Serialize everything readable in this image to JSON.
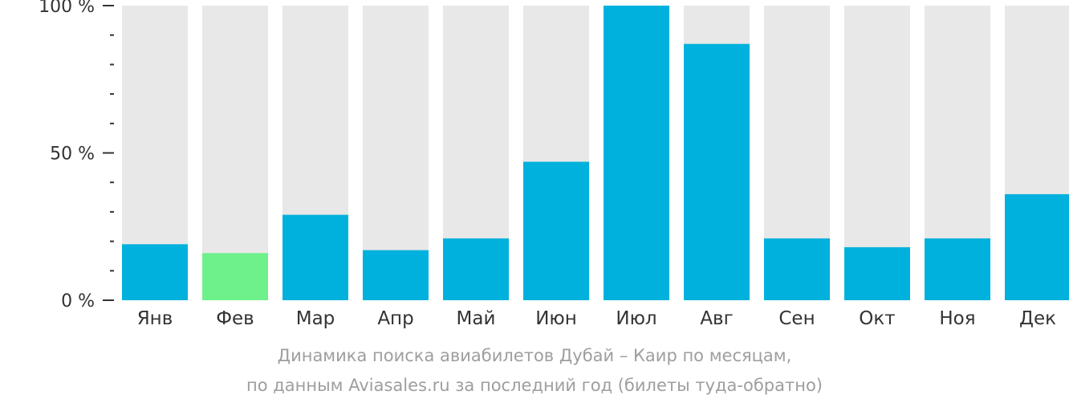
{
  "chart_data": {
    "type": "bar",
    "categories": [
      "Янв",
      "Фев",
      "Мар",
      "Апр",
      "Май",
      "Июн",
      "Июл",
      "Авг",
      "Сен",
      "Окт",
      "Ноя",
      "Дек"
    ],
    "values": [
      19,
      16,
      29,
      17,
      21,
      47,
      100,
      87,
      21,
      18,
      21,
      36
    ],
    "highlighted_category": "Фев",
    "ylim": [
      0,
      100
    ],
    "y_ticks": [
      {
        "value": 100,
        "label": "100 %"
      },
      {
        "value": 50,
        "label": "50 %"
      },
      {
        "value": 0,
        "label": "0 %"
      }
    ],
    "y_minor_step": 10,
    "grid": false,
    "legend": "none",
    "colors": {
      "bar": "#00b1dd",
      "highlight": "#6ef08a",
      "background_bar": "#e8e8e8",
      "axis": "#333333",
      "caption": "#9e9e9e"
    }
  },
  "caption": {
    "line1": "Динамика поиска авиабилетов Дубай – Каир по месяцам,",
    "line2": "по данным Aviasales.ru за последний год (билеты туда-обратно)"
  }
}
